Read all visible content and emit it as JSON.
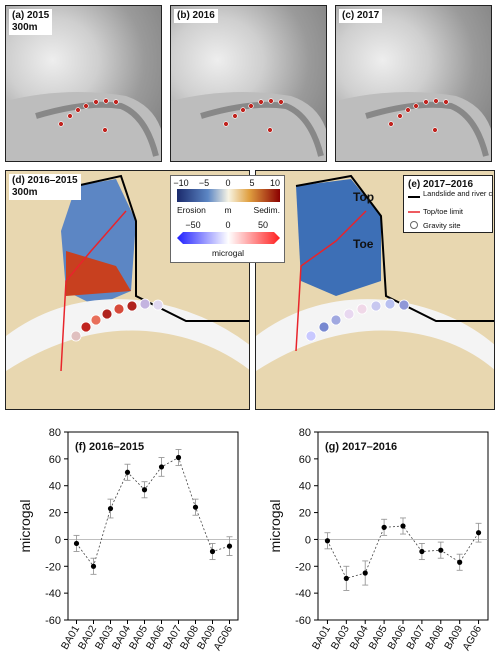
{
  "top_panels": [
    {
      "label": "(a) 2015",
      "scale": "300m"
    },
    {
      "label": "(b) 2016"
    },
    {
      "label": "(c) 2017"
    }
  ],
  "map_panels": {
    "left": {
      "label": "(d) 2016–2015",
      "scale": "300m"
    },
    "right": {
      "label": "(e) 2017–2016",
      "top_label": "Top",
      "toe_label": "Toe"
    }
  },
  "colorbar_m": {
    "ticks": [
      "−10",
      "−5",
      "0",
      "5",
      "10"
    ],
    "left": "Erosion",
    "unit": "m",
    "right": "Sedim."
  },
  "colorbar_microgal": {
    "ticks": [
      "−50",
      "0",
      "50"
    ],
    "unit": "microgal"
  },
  "legend": {
    "items": [
      "Landslide and river contour",
      "Top/toe limit",
      "Gravity site"
    ],
    "colors": {
      "contour": "#000000",
      "limit": "#e8242b",
      "site": "#ffffff"
    }
  },
  "chart_data": [
    {
      "type": "scatter",
      "title": "(f) 2016–2015",
      "ylabel": "microgal",
      "ylim": [
        -60,
        80
      ],
      "yticks": [
        -60,
        -40,
        -20,
        0,
        20,
        40,
        60,
        80
      ],
      "categories": [
        "BA01",
        "BA02",
        "BA03",
        "BA04",
        "BA05",
        "BA06",
        "BA07",
        "BA08",
        "BA09",
        "AG06"
      ],
      "values": [
        -3,
        -20,
        23,
        50,
        37,
        54,
        61,
        24,
        -9,
        -5
      ],
      "errors": [
        6,
        6,
        7,
        6,
        6,
        7,
        6,
        6,
        6,
        7
      ]
    },
    {
      "type": "scatter",
      "title": "(g) 2017–2016",
      "ylabel": "microgal",
      "ylim": [
        -60,
        80
      ],
      "yticks": [
        -60,
        -40,
        -20,
        0,
        20,
        40,
        60,
        80
      ],
      "categories": [
        "BA01",
        "BA03",
        "BA04",
        "BA05",
        "BA06",
        "BA07",
        "BA08",
        "BA09",
        "AG06"
      ],
      "values": [
        -1,
        -29,
        -25,
        9,
        10,
        -9,
        -8,
        -17,
        5
      ],
      "errors": [
        6,
        9,
        9,
        6,
        6,
        6,
        6,
        6,
        7
      ]
    }
  ]
}
